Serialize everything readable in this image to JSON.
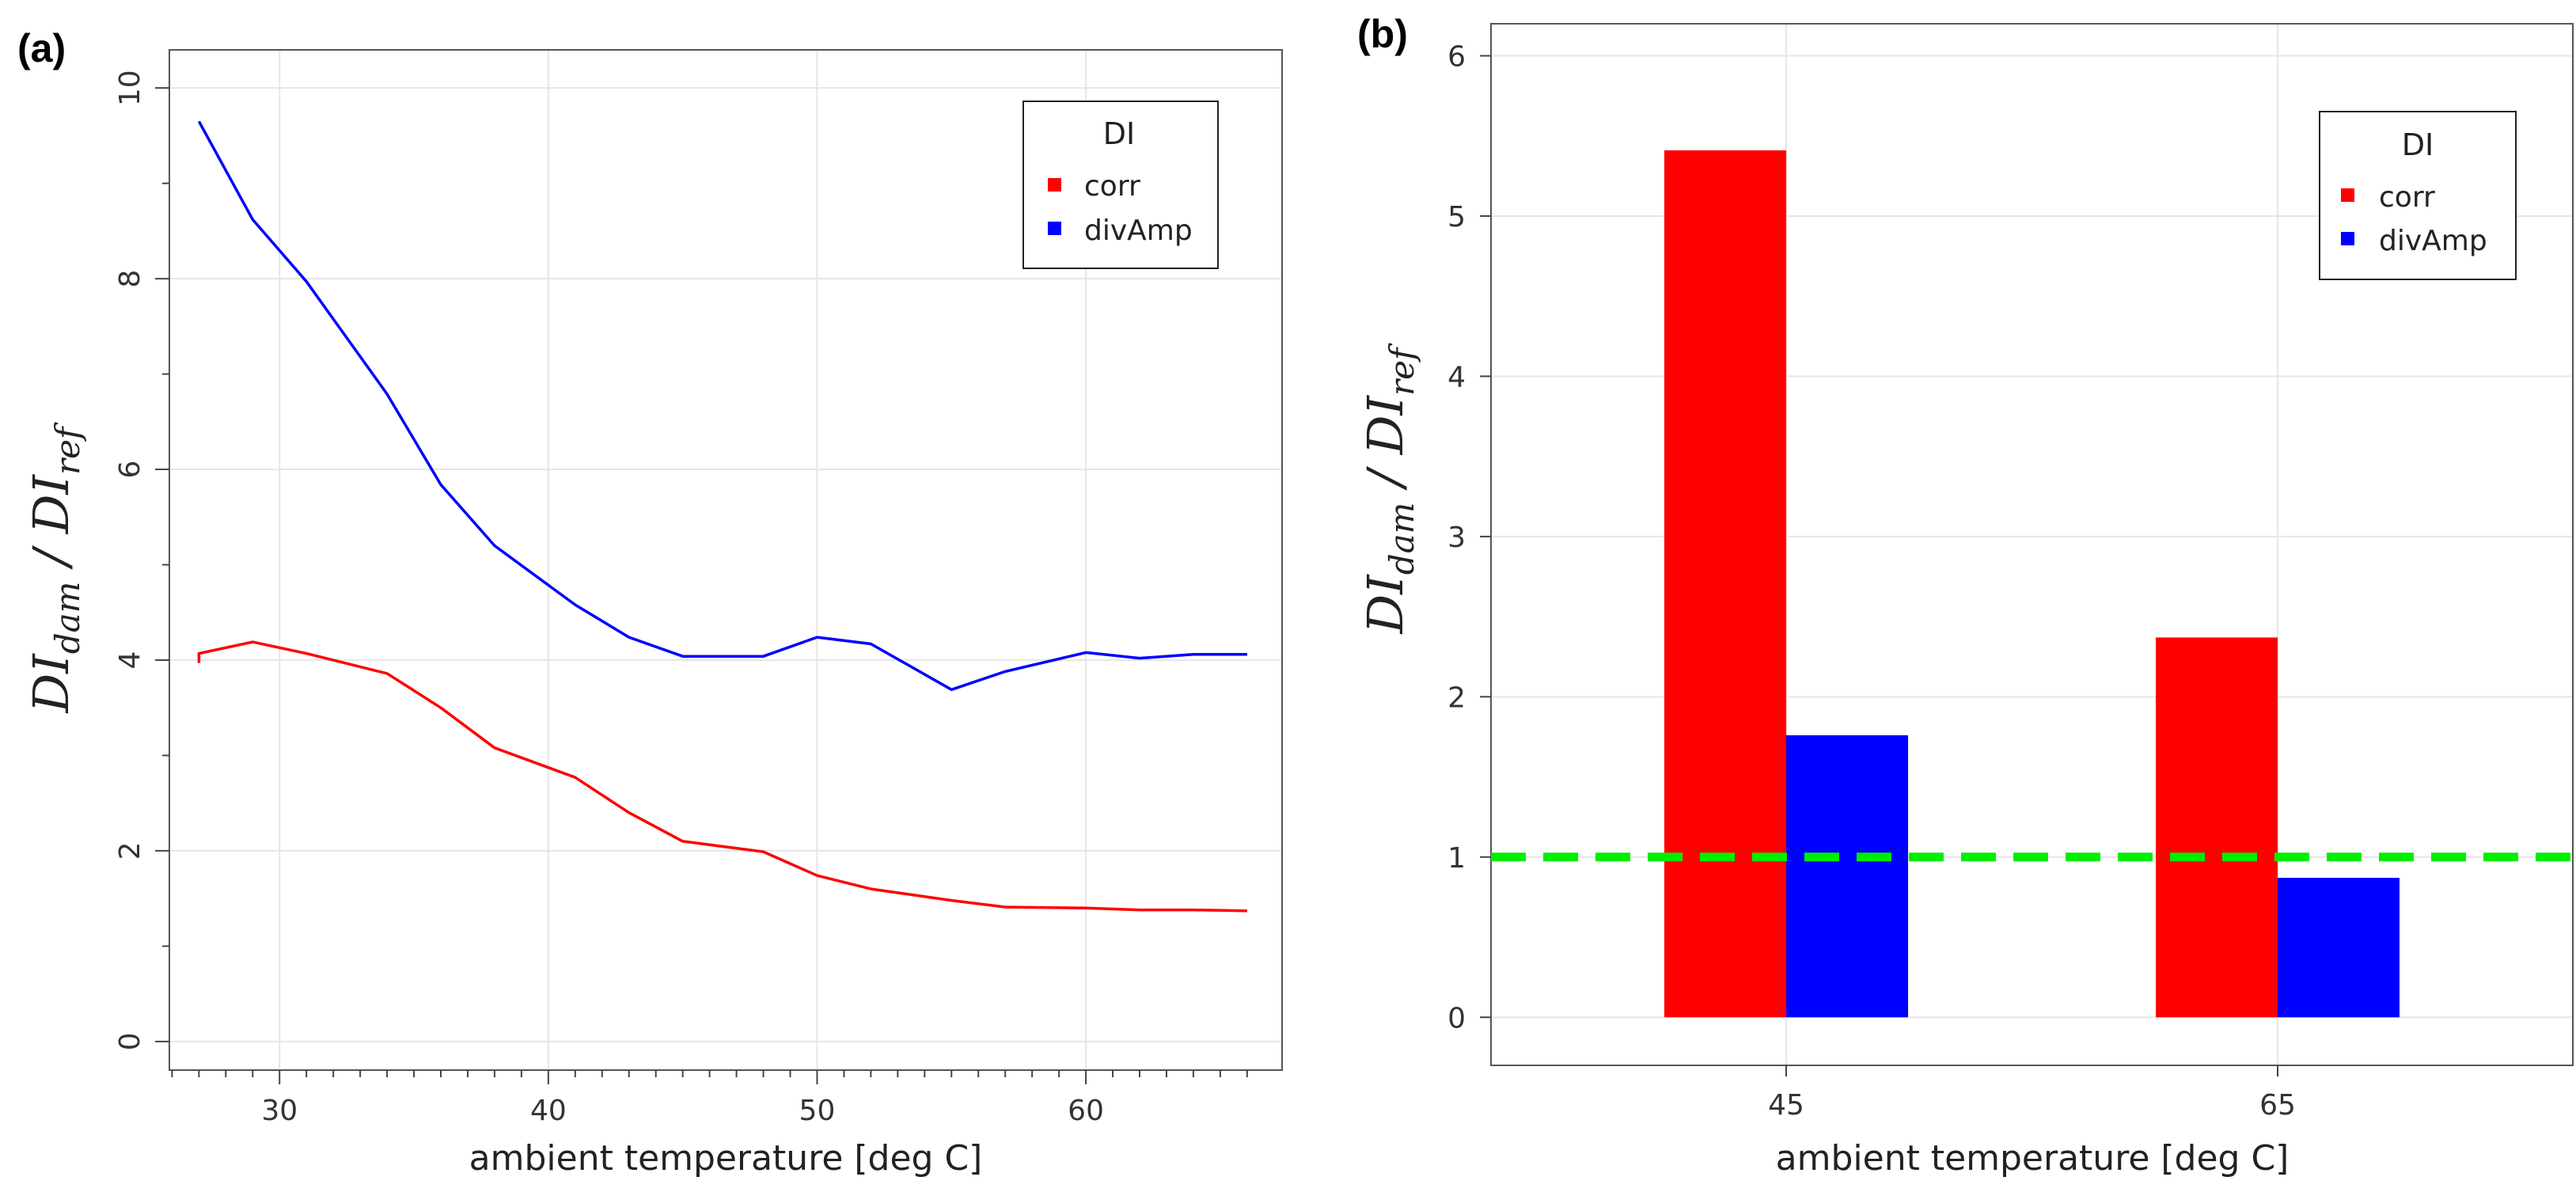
{
  "chart_data": [
    {
      "panel": "(a)",
      "type": "line",
      "xlabel": "ambient temperature [deg C]",
      "ylabel": "DI_dam / DI_ref",
      "ylabel_main1": "DI",
      "ylabel_sub1": "dam",
      "ylabel_sep": " / DI",
      "ylabel_sub2": "ref",
      "xlim": [
        25.9,
        67.3
      ],
      "ylim": [
        -0.3,
        10.4
      ],
      "xticks": [
        30,
        40,
        50,
        60
      ],
      "yticks": [
        0,
        2,
        4,
        6,
        8,
        10
      ],
      "legend": {
        "title": "DI",
        "position": "top-right"
      },
      "series": [
        {
          "name": "corr",
          "color": "#ff0000",
          "x": [
            27,
            27,
            29,
            31,
            34,
            36,
            38,
            41,
            43,
            45,
            48,
            50,
            52,
            55,
            57,
            60,
            62,
            64,
            66
          ],
          "y": [
            3.97,
            4.07,
            4.19,
            4.07,
            3.86,
            3.5,
            3.08,
            2.77,
            2.4,
            2.1,
            1.99,
            1.74,
            1.6,
            1.48,
            1.41,
            1.4,
            1.38,
            1.38,
            1.37
          ]
        },
        {
          "name": "divAmp",
          "color": "#0000ff",
          "x": [
            27,
            29,
            31,
            34,
            36,
            38,
            41,
            43,
            45,
            48,
            50,
            52,
            55,
            57,
            60,
            62,
            64,
            66
          ],
          "y": [
            9.65,
            8.62,
            7.97,
            6.79,
            5.84,
            5.2,
            4.58,
            4.24,
            4.04,
            4.04,
            4.24,
            4.17,
            3.69,
            3.88,
            4.08,
            4.02,
            4.06,
            4.06
          ]
        }
      ]
    },
    {
      "panel": "(b)",
      "type": "bar",
      "xlabel": "ambient temperature [deg C]",
      "ylabel": "DI_dam / DI_ref",
      "ylabel_main1": "DI",
      "ylabel_sub1": "dam",
      "ylabel_sep": " / DI",
      "ylabel_sub2": "ref",
      "categories": [
        "45",
        "65"
      ],
      "ylim": [
        -0.3,
        6.2
      ],
      "yticks": [
        0,
        1,
        2,
        3,
        4,
        5,
        6
      ],
      "reference_line": {
        "y": 1.0,
        "color": "#00ee00",
        "style": "dashed"
      },
      "legend": {
        "title": "DI",
        "position": "top-right"
      },
      "series": [
        {
          "name": "corr",
          "color": "#ff0000",
          "values": [
            5.41,
            2.37
          ]
        },
        {
          "name": "divAmp",
          "color": "#0000ff",
          "values": [
            1.76,
            0.87
          ]
        }
      ]
    }
  ]
}
